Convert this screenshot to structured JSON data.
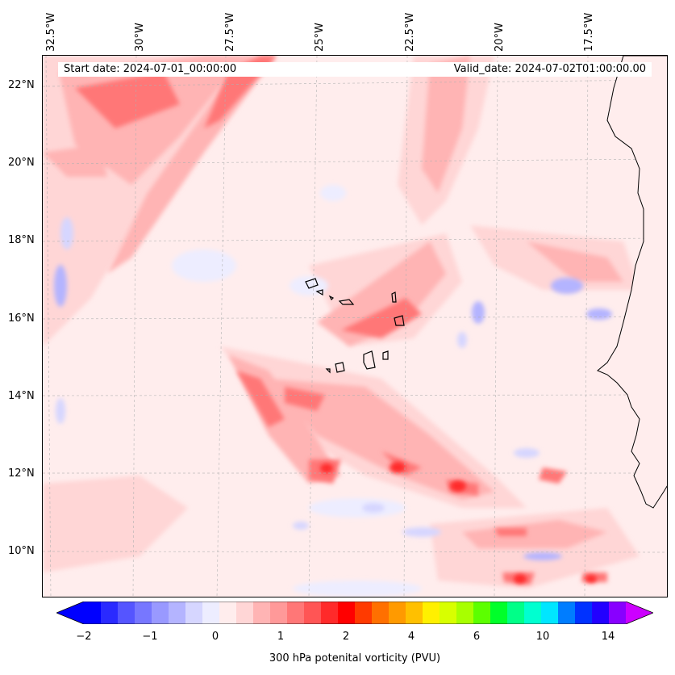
{
  "header": {
    "start_date": "Start date: 2024-07-01_00:00:00",
    "valid_date": "Valid_date: 2024-07-02T01:00:00.00"
  },
  "axes": {
    "lon_labels": [
      "32.5°W",
      "30°W",
      "27.5°W",
      "25°W",
      "22.5°W",
      "20°W",
      "17.5°W"
    ],
    "lat_labels": [
      "22°N",
      "20°N",
      "18°N",
      "16°N",
      "14°N",
      "12°N",
      "10°N"
    ]
  },
  "colorbar": {
    "label": "300 hPa potenital vorticity (PVU)",
    "ticks": [
      "−2",
      "−1",
      "0",
      "1",
      "2",
      "4",
      "6",
      "10",
      "14"
    ],
    "colors": [
      "#0000ff",
      "#2a2aff",
      "#5555ff",
      "#7777ff",
      "#9999ff",
      "#b4b4ff",
      "#d6d6ff",
      "#ededff",
      "#ffeded",
      "#ffd6d6",
      "#ffb4b4",
      "#ff9999",
      "#ff7777",
      "#ff5555",
      "#ff2a2a",
      "#ff0000",
      "#ff3a00",
      "#ff7000",
      "#ff9a00",
      "#ffc000",
      "#fff000",
      "#d8ff00",
      "#a8ff00",
      "#5cff00",
      "#00ff2a",
      "#00ff88",
      "#00ffd0",
      "#00e6ff",
      "#007dff",
      "#0032ff",
      "#2200ff",
      "#8800ff"
    ],
    "min_arrow_color": "#0000ff",
    "max_arrow_color": "#cc00ff"
  }
}
